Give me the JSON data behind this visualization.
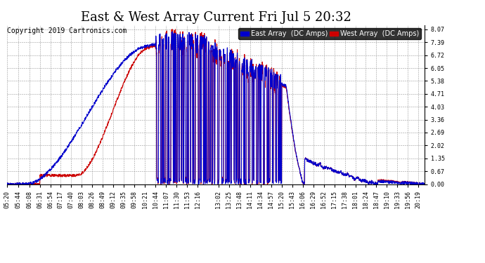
{
  "title": "East & West Array Current Fri Jul 5 20:32",
  "copyright": "Copyright 2019 Cartronics.com",
  "legend_east": "East Array  (DC Amps)",
  "legend_west": "West Array  (DC Amps)",
  "east_color": "#0000cc",
  "west_color": "#cc0000",
  "background_color": "#ffffff",
  "grid_color": "#999999",
  "yticks": [
    0.0,
    0.67,
    1.35,
    2.02,
    2.69,
    3.36,
    4.03,
    4.71,
    5.38,
    6.05,
    6.72,
    7.39,
    8.07
  ],
  "ylim": [
    0.0,
    8.3
  ],
  "xtick_labels": [
    "05:20",
    "05:44",
    "06:08",
    "06:31",
    "06:54",
    "07:17",
    "07:40",
    "08:03",
    "08:26",
    "08:49",
    "09:12",
    "09:35",
    "09:58",
    "10:21",
    "10:44",
    "11:07",
    "11:30",
    "11:53",
    "12:16",
    "13:02",
    "13:25",
    "13:48",
    "14:11",
    "14:34",
    "14:57",
    "15:20",
    "15:43",
    "16:06",
    "16:29",
    "16:52",
    "17:15",
    "17:38",
    "18:01",
    "18:24",
    "18:47",
    "19:10",
    "19:33",
    "19:56",
    "20:19"
  ],
  "title_fontsize": 13,
  "copyright_fontsize": 7,
  "legend_fontsize": 7,
  "tick_fontsize": 6,
  "line_width": 0.8
}
